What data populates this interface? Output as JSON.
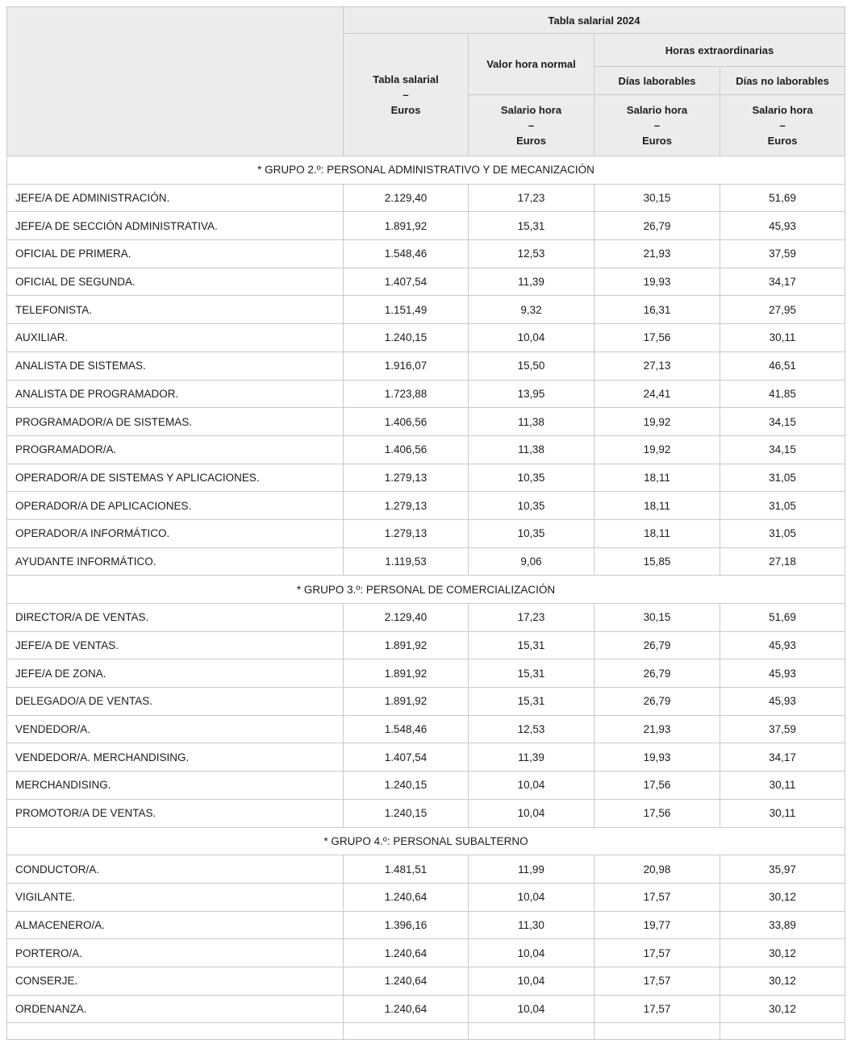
{
  "colors": {
    "header_bg": "#ececec",
    "border": "#c9c9c9",
    "text": "#1c1c1b",
    "page_bg": "#ffffff"
  },
  "header": {
    "title": "Tabla salarial 2024",
    "tabla_salarial": {
      "line1": "Tabla salarial",
      "dash": "–",
      "line2": "Euros"
    },
    "valor_hora_normal": "Valor hora normal",
    "horas_extraordinarias": "Horas extraordinarias",
    "dias_laborables": "Días laborables",
    "dias_no_laborables": "Días no laborables",
    "salario_hora": {
      "line1": "Salario hora",
      "dash": "–",
      "line2": "Euros"
    }
  },
  "groups": [
    {
      "title": "* GRUPO 2.º: PERSONAL ADMINISTRATIVO Y DE MECANIZACIÓN",
      "rows": [
        {
          "label": "JEFE/A DE ADMINISTRACIÓN.",
          "values": [
            "2.129,40",
            "17,23",
            "30,15",
            "51,69"
          ]
        },
        {
          "label": "JEFE/A DE SECCIÓN ADMINISTRATIVA.",
          "values": [
            "1.891,92",
            "15,31",
            "26,79",
            "45,93"
          ]
        },
        {
          "label": "OFICIAL DE PRIMERA.",
          "values": [
            "1.548,46",
            "12,53",
            "21,93",
            "37,59"
          ]
        },
        {
          "label": "OFICIAL DE SEGUNDA.",
          "values": [
            "1.407,54",
            "11,39",
            "19,93",
            "34,17"
          ]
        },
        {
          "label": "TELEFONISTA.",
          "values": [
            "1.151,49",
            "9,32",
            "16,31",
            "27,95"
          ]
        },
        {
          "label": "AUXILIAR.",
          "values": [
            "1.240,15",
            "10,04",
            "17,56",
            "30,11"
          ]
        },
        {
          "label": "ANALISTA DE SISTEMAS.",
          "values": [
            "1.916,07",
            "15,50",
            "27,13",
            "46,51"
          ]
        },
        {
          "label": "ANALISTA DE PROGRAMADOR.",
          "values": [
            "1.723,88",
            "13,95",
            "24,41",
            "41,85"
          ]
        },
        {
          "label": "PROGRAMADOR/A DE SISTEMAS.",
          "values": [
            "1.406,56",
            "11,38",
            "19,92",
            "34,15"
          ]
        },
        {
          "label": "PROGRAMADOR/A.",
          "values": [
            "1.406,56",
            "11,38",
            "19,92",
            "34,15"
          ]
        },
        {
          "label": "OPERADOR/A DE SISTEMAS Y APLICACIONES.",
          "values": [
            "1.279,13",
            "10,35",
            "18,11",
            "31,05"
          ]
        },
        {
          "label": "OPERADOR/A DE APLICACIONES.",
          "values": [
            "1.279,13",
            "10,35",
            "18,11",
            "31,05"
          ]
        },
        {
          "label": "OPERADOR/A INFORMÁTICO.",
          "values": [
            "1.279,13",
            "10,35",
            "18,11",
            "31,05"
          ]
        },
        {
          "label": "AYUDANTE INFORMÁTICO.",
          "values": [
            "1.119,53",
            "9,06",
            "15,85",
            "27,18"
          ]
        }
      ]
    },
    {
      "title": "* GRUPO 3.º: PERSONAL DE COMERCIALIZACIÓN",
      "rows": [
        {
          "label": "DIRECTOR/A DE VENTAS.",
          "values": [
            "2.129,40",
            "17,23",
            "30,15",
            "51,69"
          ]
        },
        {
          "label": "JEFE/A DE VENTAS.",
          "values": [
            "1.891,92",
            "15,31",
            "26,79",
            "45,93"
          ]
        },
        {
          "label": "JEFE/A DE ZONA.",
          "values": [
            "1.891,92",
            "15,31",
            "26,79",
            "45,93"
          ]
        },
        {
          "label": "DELEGADO/A DE VENTAS.",
          "values": [
            "1.891,92",
            "15,31",
            "26,79",
            "45,93"
          ]
        },
        {
          "label": "VENDEDOR/A.",
          "values": [
            "1.548,46",
            "12,53",
            "21,93",
            "37,59"
          ]
        },
        {
          "label": "VENDEDOR/A. MERCHANDISING.",
          "values": [
            "1.407,54",
            "11,39",
            "19,93",
            "34,17"
          ]
        },
        {
          "label": "MERCHANDISING.",
          "values": [
            "1.240,15",
            "10,04",
            "17,56",
            "30,11"
          ]
        },
        {
          "label": "PROMOTOR/A DE VENTAS.",
          "values": [
            "1.240,15",
            "10,04",
            "17,56",
            "30,11"
          ]
        }
      ]
    },
    {
      "title": "* GRUPO 4.º: PERSONAL SUBALTERNO",
      "rows": [
        {
          "label": "CONDUCTOR/A.",
          "values": [
            "1.481,51",
            "11,99",
            "20,98",
            "35,97"
          ]
        },
        {
          "label": "VIGILANTE.",
          "values": [
            "1.240,64",
            "10,04",
            "17,57",
            "30,12"
          ]
        },
        {
          "label": "ALMACENERO/A.",
          "values": [
            "1.396,16",
            "11,30",
            "19,77",
            "33,89"
          ]
        },
        {
          "label": "PORTERO/A.",
          "values": [
            "1.240,64",
            "10,04",
            "17,57",
            "30,12"
          ]
        },
        {
          "label": "CONSERJE.",
          "values": [
            "1.240,64",
            "10,04",
            "17,57",
            "30,12"
          ]
        },
        {
          "label": "ORDENANZA.",
          "values": [
            "1.240,64",
            "10,04",
            "17,57",
            "30,12"
          ]
        }
      ]
    }
  ]
}
